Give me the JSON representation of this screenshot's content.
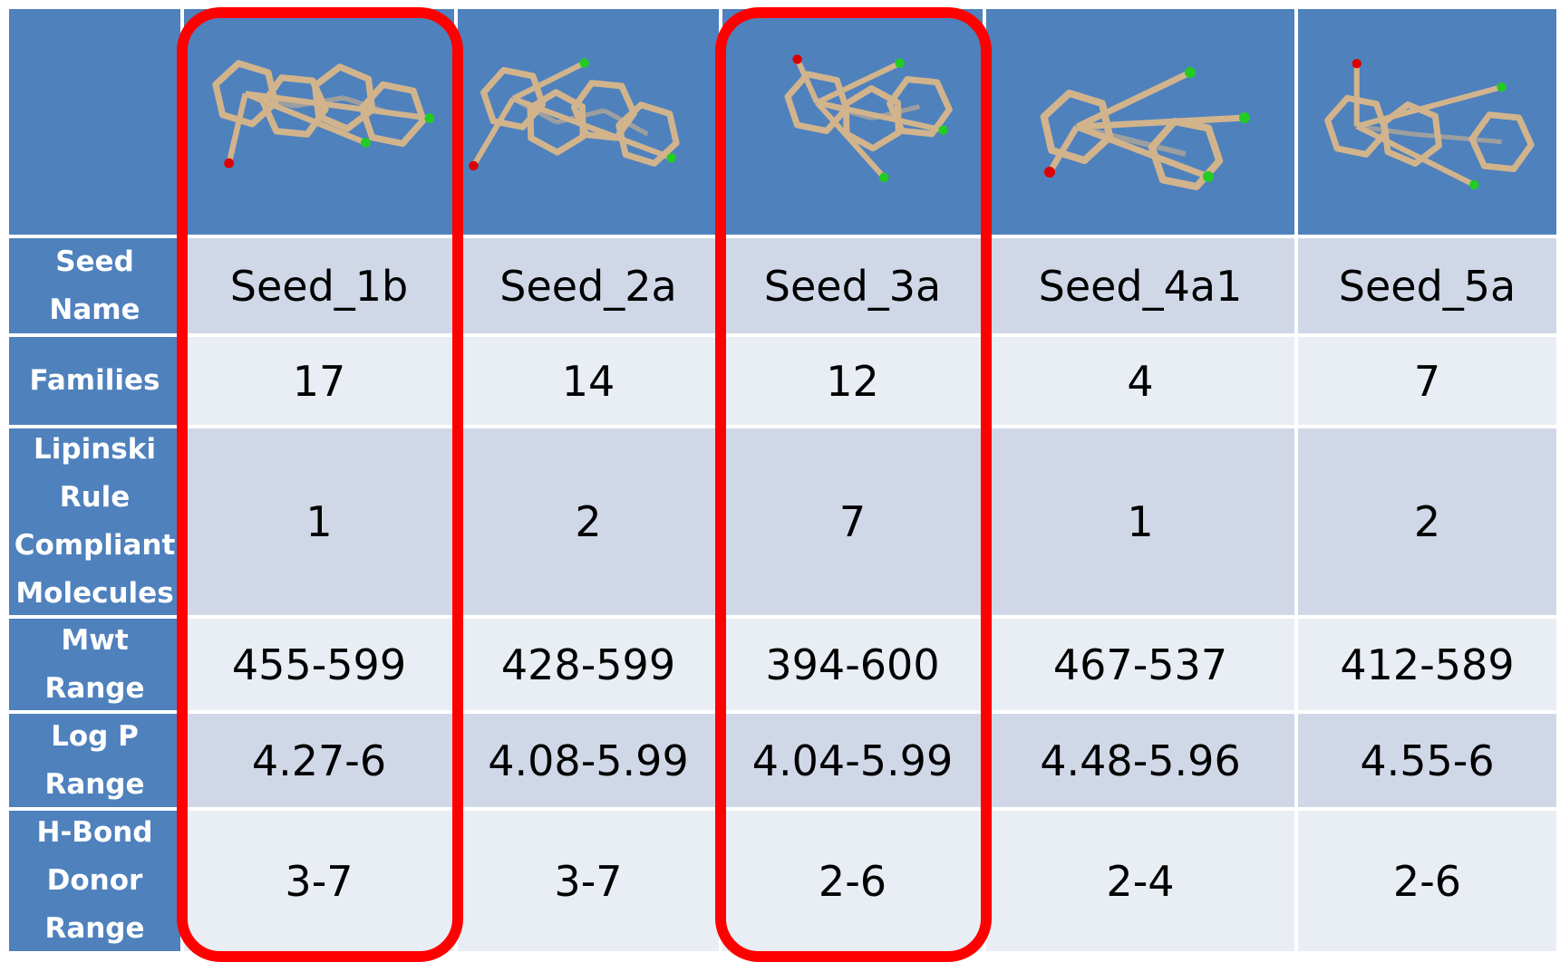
{
  "table": {
    "row_labels": {
      "seed_name": [
        "Seed",
        "Name"
      ],
      "families": [
        "Families"
      ],
      "lipinski": [
        "Lipinski",
        "Rule",
        "Compliant",
        "Molecules"
      ],
      "mwt": [
        "Mwt",
        "Range"
      ],
      "logp": [
        "Log P",
        "Range"
      ],
      "hbond": [
        "H-Bond",
        "Donor",
        "Range"
      ]
    },
    "columns": [
      {
        "seed_name": "Seed_1b",
        "families": "17",
        "lipinski": "1",
        "mwt": "455-599",
        "logp": "4.27-6",
        "hbond": "3-7",
        "highlighted": true
      },
      {
        "seed_name": "Seed_2a",
        "families": "14",
        "lipinski": "2",
        "mwt": "428-599",
        "logp": "4.08-5.99",
        "hbond": "3-7",
        "highlighted": false
      },
      {
        "seed_name": "Seed_3a",
        "families": "12",
        "lipinski": "7",
        "mwt": "394-600",
        "logp": "4.04-5.99",
        "hbond": "2-6",
        "highlighted": true
      },
      {
        "seed_name": "Seed_4a1",
        "families": "4",
        "lipinski": "1",
        "mwt": "467-537",
        "logp": "4.48-5.96",
        "hbond": "2-4",
        "highlighted": false
      },
      {
        "seed_name": "Seed_5a",
        "families": "7",
        "lipinski": "2",
        "mwt": "412-589",
        "logp": "4.55-6",
        "hbond": "2-6",
        "highlighted": false
      }
    ]
  },
  "colors": {
    "header_blue": "#4f81bd",
    "row_dark": "#d0d8e8",
    "row_light": "#e9edf4",
    "highlight": "#ff0000",
    "bond": "#d2b48c",
    "oxygen": "#dd0000",
    "hydrogen": "#22cc22"
  }
}
